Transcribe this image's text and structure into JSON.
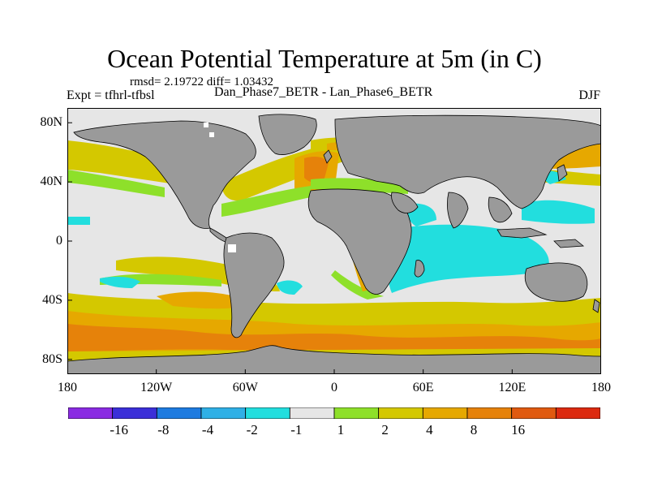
{
  "title": "Ocean Potential Temperature at 5m (in C)",
  "stats": "rmsd= 2.19722 diff= 1.03432",
  "expt": "Expt = tfhrl-tfbsl",
  "subtitle": "Dan_Phase7_BETR - Lan_Phase6_BETR",
  "season": "DJF",
  "lat_ticks": [
    {
      "label": "80N",
      "lat": 80
    },
    {
      "label": "40N",
      "lat": 40
    },
    {
      "label": "0",
      "lat": 0
    },
    {
      "label": "40S",
      "lat": -40
    },
    {
      "label": "80S",
      "lat": -80
    }
  ],
  "lon_ticks": [
    {
      "label": "180",
      "lon": -180
    },
    {
      "label": "120W",
      "lon": -120
    },
    {
      "label": "60W",
      "lon": -60
    },
    {
      "label": "0",
      "lon": 0
    },
    {
      "label": "60E",
      "lon": 60
    },
    {
      "label": "120E",
      "lon": 120
    },
    {
      "label": "180",
      "lon": 180
    }
  ],
  "colorbar": {
    "colors": [
      "#8a2be2",
      "#3b2fd8",
      "#1e7be0",
      "#2fb0e6",
      "#22dede",
      "#e6e6e6",
      "#8ee02a",
      "#d4c800",
      "#e6a800",
      "#e6820a",
      "#e05a10",
      "#dc2a10"
    ],
    "labels": [
      "-16",
      "-8",
      "-4",
      "-2",
      "-1",
      "1",
      "2",
      "4",
      "8",
      "16"
    ]
  },
  "colors": {
    "land": "#9a9a9a",
    "neutral": "#e6e6e6",
    "frame": "#000000"
  }
}
